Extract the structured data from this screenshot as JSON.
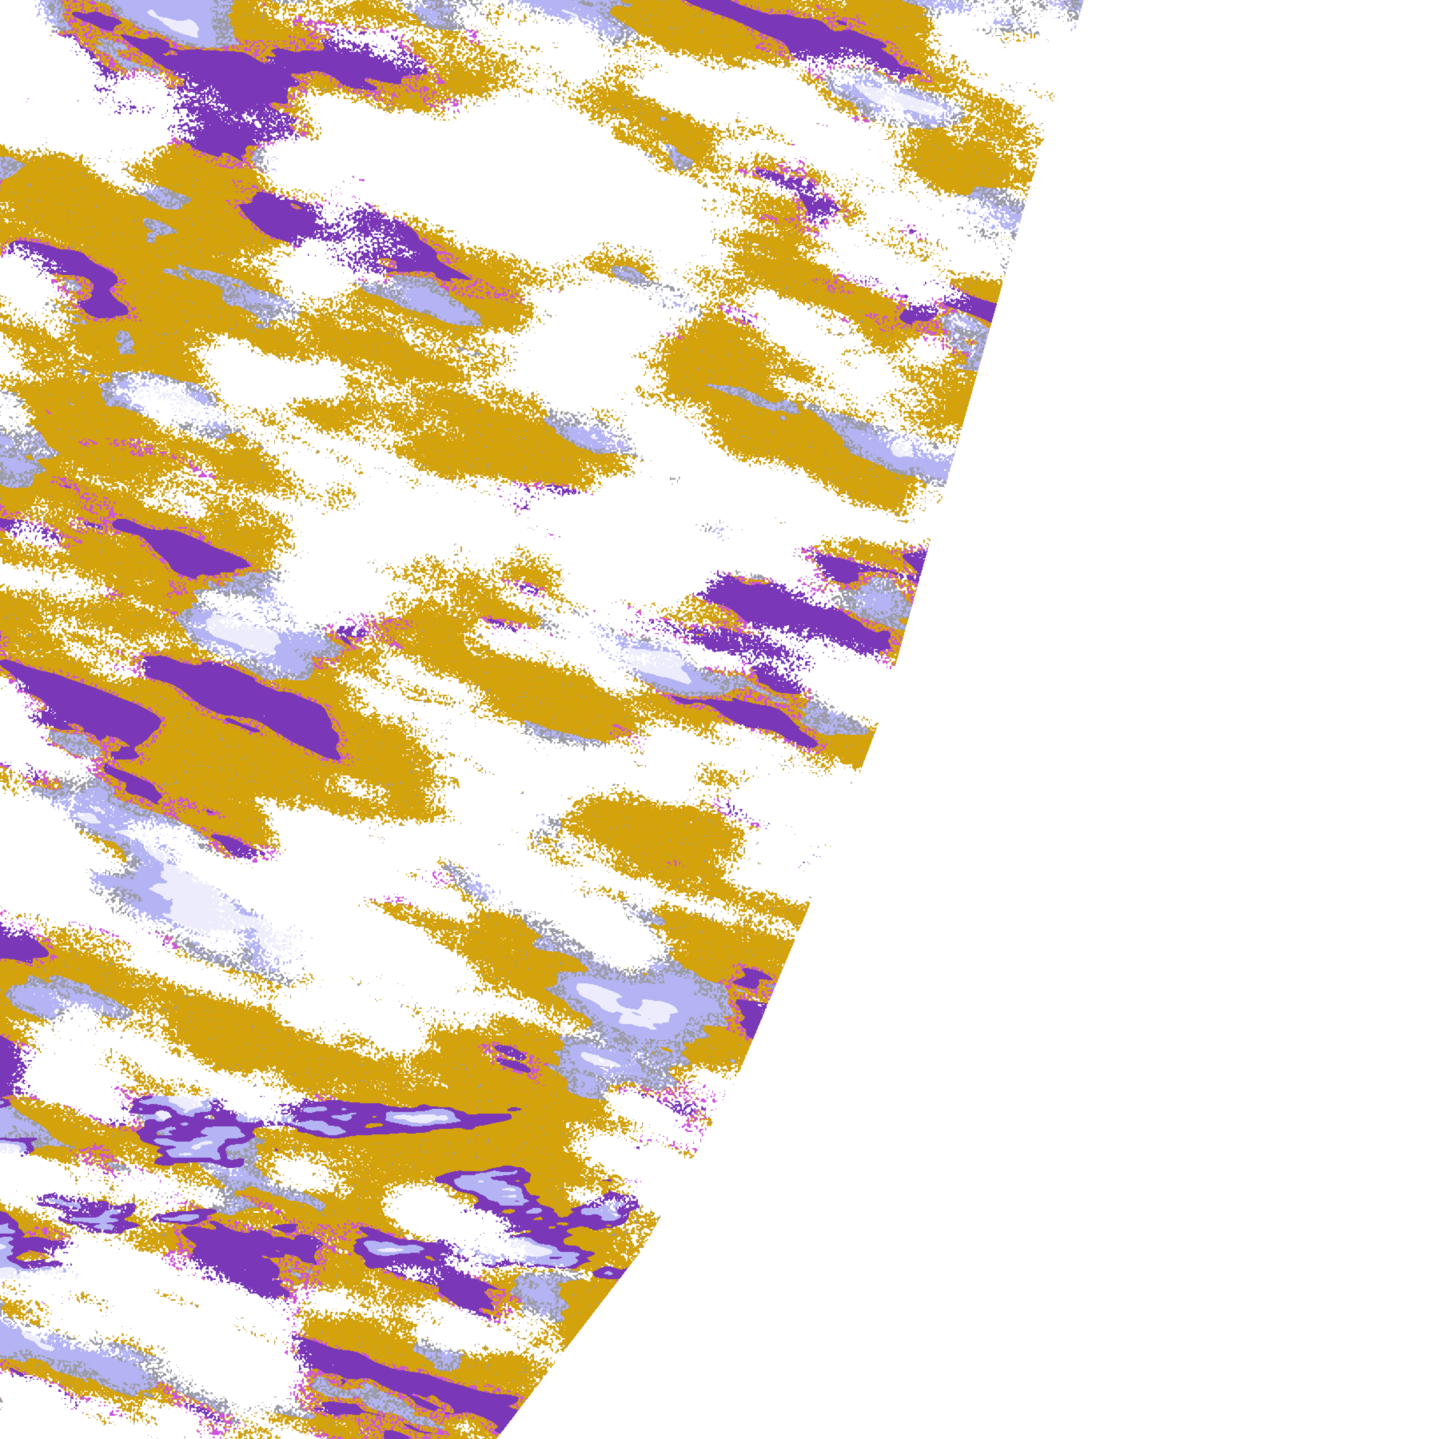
{
  "image": {
    "kind": "satellite cloud classification imagery, earth disk limb on right",
    "background": "#ffffff",
    "palette": {
      "gold": "#d4a20a",
      "purple": "#7a38b8",
      "magenta": "#cc55dd",
      "lavender": "#b4b4f4",
      "pale": "#ececfc",
      "gray": "#9c9ca6"
    }
  }
}
